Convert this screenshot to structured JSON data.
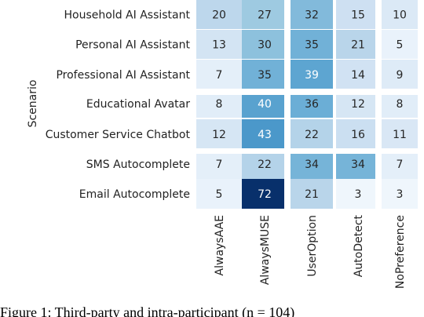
{
  "chart_data": {
    "type": "heatmap",
    "ylabel": "Scenario",
    "rows": [
      "Household AI Assistant",
      "Personal AI Assistant",
      "Professional AI Assistant",
      "Educational Avatar",
      "Customer Service Chatbot",
      "SMS Autocomplete",
      "Email Autocomplete"
    ],
    "columns": [
      "AlwaysAAE",
      "AlwaysMUSE",
      "UserOption",
      "AutoDetect",
      "NoPreference"
    ],
    "values": [
      [
        20,
        27,
        32,
        15,
        10
      ],
      [
        13,
        30,
        35,
        21,
        5
      ],
      [
        7,
        35,
        39,
        14,
        9
      ],
      [
        8,
        40,
        36,
        12,
        8
      ],
      [
        12,
        43,
        22,
        16,
        11
      ],
      [
        7,
        22,
        34,
        34,
        7
      ],
      [
        5,
        72,
        21,
        3,
        3
      ]
    ],
    "row_groups": [
      [
        0,
        1,
        2
      ],
      [
        3,
        4
      ],
      [
        5,
        6
      ]
    ],
    "column_groups": [
      [
        0,
        1
      ],
      [
        2,
        3
      ],
      [
        4
      ]
    ],
    "color_scale": {
      "min": 0,
      "max": 72,
      "low": "#f7fbff",
      "high": "#08306b"
    }
  },
  "caption": "Figure 1: Third-party and intra-participant (n = 104)"
}
